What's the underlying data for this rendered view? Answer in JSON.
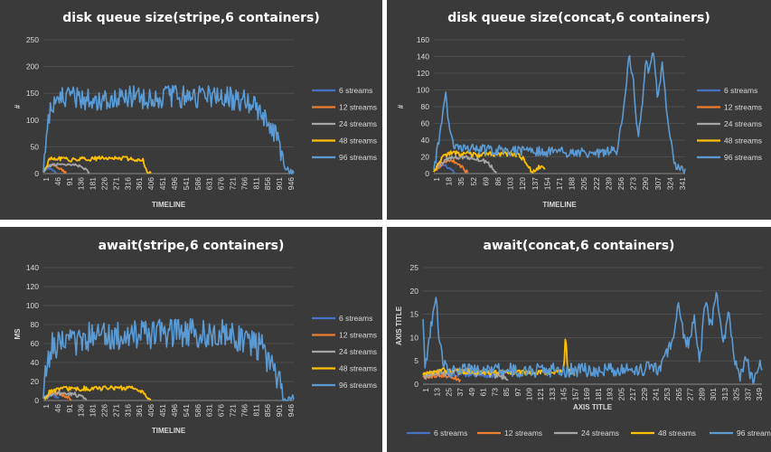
{
  "chart_data": [
    {
      "type": "line",
      "title": "disk queue size(stripe,6 containers)",
      "ylabel": "#",
      "xlabel": "TIMELINE",
      "ylim": [
        0,
        250
      ],
      "yticks": [
        0,
        50,
        100,
        150,
        200,
        250
      ],
      "xrange": [
        1,
        976
      ],
      "xticks": [
        "1",
        "46",
        "91",
        "136",
        "181",
        "226",
        "271",
        "316",
        "361",
        "406",
        "451",
        "496",
        "541",
        "586",
        "631",
        "676",
        "721",
        "766",
        "811",
        "856",
        "901",
        "946"
      ],
      "legend_position": "right",
      "series": [
        {
          "name": "6 streams",
          "color": "#4472c4",
          "x": [
            1,
            10,
            20,
            30,
            40,
            50
          ],
          "values": [
            2,
            6,
            11,
            9,
            5,
            1
          ],
          "noise": 1.5
        },
        {
          "name": "12 streams",
          "color": "#ed7d31",
          "x": [
            1,
            15,
            30,
            45,
            60,
            75,
            90
          ],
          "values": [
            2,
            12,
            16,
            14,
            11,
            6,
            1
          ],
          "noise": 2
        },
        {
          "name": "24 streams",
          "color": "#a5a5a5",
          "x": [
            1,
            20,
            40,
            70,
            100,
            130,
            150,
            170,
            180
          ],
          "values": [
            2,
            14,
            17,
            18,
            17,
            16,
            15,
            5,
            1
          ],
          "noise": 3
        },
        {
          "name": "48 streams",
          "color": "#ffc000",
          "x": [
            1,
            25,
            50,
            100,
            200,
            300,
            360,
            390,
            400,
            410,
            420
          ],
          "values": [
            3,
            26,
            28,
            26,
            28,
            29,
            27,
            25,
            10,
            3,
            1
          ],
          "noise": 4
        },
        {
          "name": "96 streams",
          "color": "#5b9bd5",
          "x": [
            1,
            10,
            20,
            40,
            80,
            200,
            400,
            600,
            700,
            780,
            840,
            880,
            910,
            930,
            945,
            960,
            976
          ],
          "values": [
            3,
            60,
            110,
            130,
            140,
            140,
            143,
            145,
            145,
            135,
            118,
            100,
            70,
            40,
            10,
            2,
            1
          ],
          "noise": 22
        }
      ]
    },
    {
      "type": "line",
      "title": "disk queue size(concat,6 containers)",
      "ylabel": "#",
      "xlabel": "TIMELINE",
      "ylim": [
        0,
        160
      ],
      "yticks": [
        0,
        20,
        40,
        60,
        80,
        100,
        120,
        140,
        160
      ],
      "xrange": [
        1,
        350
      ],
      "xticks": [
        "1",
        "18",
        "35",
        "52",
        "69",
        "86",
        "103",
        "120",
        "137",
        "154",
        "171",
        "188",
        "205",
        "222",
        "239",
        "256",
        "273",
        "290",
        "307",
        "324",
        "341"
      ],
      "legend_position": "right",
      "series": [
        {
          "name": "6 streams",
          "color": "#4472c4",
          "x": [
            1,
            5,
            10,
            15,
            20,
            25,
            30
          ],
          "values": [
            2,
            6,
            9,
            10,
            8,
            4,
            1
          ],
          "noise": 1.5
        },
        {
          "name": "12 streams",
          "color": "#ed7d31",
          "x": [
            1,
            8,
            15,
            25,
            35,
            42,
            48
          ],
          "values": [
            2,
            8,
            14,
            16,
            12,
            6,
            1
          ],
          "noise": 2
        },
        {
          "name": "24 streams",
          "color": "#a5a5a5",
          "x": [
            1,
            10,
            20,
            40,
            60,
            75,
            85,
            88
          ],
          "values": [
            2,
            12,
            18,
            20,
            18,
            14,
            5,
            1
          ],
          "noise": 2.5
        },
        {
          "name": "48 streams",
          "color": "#ffc000",
          "x": [
            1,
            10,
            20,
            40,
            60,
            80,
            100,
            120,
            130,
            137,
            142,
            148,
            155
          ],
          "values": [
            2,
            16,
            24,
            24,
            22,
            23,
            24,
            22,
            12,
            2,
            4,
            8,
            5
          ],
          "noise": 3
        },
        {
          "name": "96 streams",
          "color": "#5b9bd5",
          "x": [
            1,
            8,
            14,
            18,
            22,
            28,
            40,
            80,
            120,
            160,
            200,
            240,
            255,
            262,
            268,
            272,
            278,
            285,
            290,
            296,
            300,
            306,
            312,
            318,
            324,
            330,
            336,
            343,
            350
          ],
          "values": [
            5,
            40,
            75,
            95,
            55,
            32,
            30,
            28,
            27,
            26,
            25,
            25,
            28,
            60,
            100,
            145,
            110,
            40,
            80,
            140,
            120,
            150,
            90,
            130,
            80,
            40,
            10,
            4,
            6
          ],
          "noise": 6
        }
      ]
    },
    {
      "type": "line",
      "title": "await(stripe,6 containers)",
      "ylabel": "MS",
      "xlabel": "TIMELINE",
      "ylim": [
        0,
        140
      ],
      "yticks": [
        0,
        20,
        40,
        60,
        80,
        100,
        120,
        140
      ],
      "xrange": [
        1,
        976
      ],
      "xticks": [
        "1",
        "46",
        "91",
        "136",
        "181",
        "226",
        "271",
        "316",
        "361",
        "406",
        "451",
        "496",
        "541",
        "586",
        "631",
        "676",
        "721",
        "766",
        "811",
        "856",
        "901",
        "946"
      ],
      "legend_position": "right",
      "series": [
        {
          "name": "6 streams",
          "color": "#4472c4",
          "x": [
            1,
            20,
            40,
            60
          ],
          "values": [
            2,
            5,
            6,
            2
          ],
          "noise": 1.5
        },
        {
          "name": "12 streams",
          "color": "#ed7d31",
          "x": [
            1,
            30,
            60,
            90,
            110
          ],
          "values": [
            2,
            6,
            7,
            5,
            1
          ],
          "noise": 2
        },
        {
          "name": "24 streams",
          "color": "#a5a5a5",
          "x": [
            1,
            40,
            80,
            120,
            150,
            170
          ],
          "values": [
            2,
            7,
            8,
            7,
            5,
            1
          ],
          "noise": 2.5
        },
        {
          "name": "48 streams",
          "color": "#ffc000",
          "x": [
            1,
            30,
            80,
            200,
            300,
            370,
            395,
            410,
            420
          ],
          "values": [
            2,
            10,
            12,
            13,
            13,
            12,
            8,
            2,
            1
          ],
          "noise": 2.5
        },
        {
          "name": "96 streams",
          "color": "#5b9bd5",
          "x": [
            1,
            10,
            30,
            80,
            200,
            400,
            600,
            700,
            790,
            860,
            900,
            930,
            950,
            976
          ],
          "values": [
            2,
            30,
            55,
            60,
            68,
            70,
            72,
            70,
            65,
            52,
            30,
            10,
            2,
            1
          ],
          "noise": 16
        }
      ]
    },
    {
      "type": "line",
      "title": "await(concat,6 containers)",
      "ylabel": "AXIS TITLE",
      "xlabel": "AXIS TITLE",
      "ylim": [
        0,
        25
      ],
      "yticks": [
        0,
        5,
        10,
        15,
        20,
        25
      ],
      "xrange": [
        1,
        355
      ],
      "xticks": [
        "1",
        "13",
        "25",
        "37",
        "49",
        "61",
        "73",
        "85",
        "97",
        "109",
        "121",
        "133",
        "145",
        "157",
        "169",
        "181",
        "193",
        "205",
        "217",
        "229",
        "241",
        "253",
        "265",
        "277",
        "289",
        "301",
        "313",
        "325",
        "337",
        "349"
      ],
      "legend_position": "bottom",
      "series": [
        {
          "name": "6 streams",
          "color": "#4472c4",
          "x": [
            1,
            20,
            40,
            60,
            80
          ],
          "values": [
            1.5,
            2,
            2.2,
            2,
            1.8
          ],
          "noise": 0.5
        },
        {
          "name": "12 streams",
          "color": "#ed7d31",
          "x": [
            1,
            15,
            30,
            40
          ],
          "values": [
            1.5,
            2,
            1.8,
            1
          ],
          "noise": 0.5
        },
        {
          "name": "24 streams",
          "color": "#a5a5a5",
          "x": [
            1,
            20,
            40,
            60,
            80,
            90
          ],
          "values": [
            2,
            2.5,
            2.8,
            2.5,
            2,
            1
          ],
          "noise": 0.8
        },
        {
          "name": "48 streams",
          "color": "#ffc000",
          "x": [
            1,
            20,
            60,
            100,
            140,
            148,
            150,
            152,
            156,
            160
          ],
          "values": [
            2,
            3,
            2.5,
            2.5,
            2.5,
            3,
            11,
            3,
            2.5,
            2
          ],
          "noise": 0.5
        },
        {
          "name": "96 streams",
          "color": "#5b9bd5",
          "x": [
            1,
            3,
            6,
            12,
            15,
            18,
            22,
            30,
            60,
            100,
            150,
            200,
            250,
            262,
            268,
            272,
            278,
            284,
            290,
            296,
            302,
            308,
            314,
            320,
            326,
            332,
            338,
            344,
            352,
            355
          ],
          "values": [
            14,
            3,
            8,
            15,
            18,
            10,
            4,
            3,
            3.2,
            3,
            3,
            3,
            3.5,
            10,
            18,
            12,
            8,
            15,
            5,
            18,
            12,
            20,
            8,
            15,
            5,
            1,
            6,
            1,
            4,
            3
          ],
          "noise": 1.5
        }
      ]
    }
  ]
}
